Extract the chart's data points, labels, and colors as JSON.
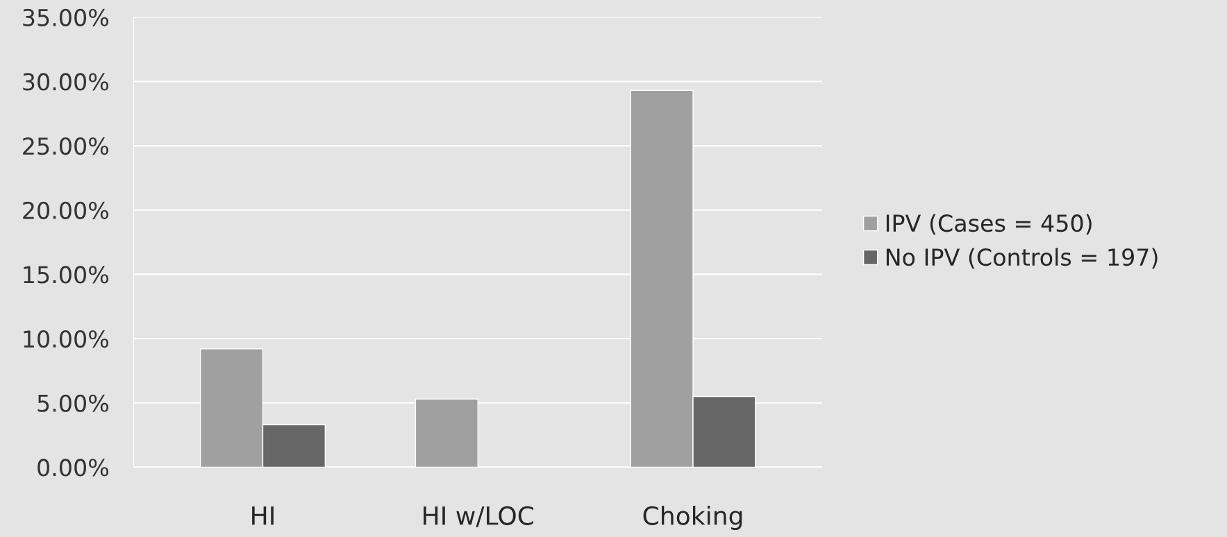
{
  "chart_data": {
    "type": "bar",
    "categories": [
      "HI",
      "HI w/LOC",
      "Choking"
    ],
    "series": [
      {
        "name": "IPV (Cases = 450)",
        "color": "#a0a0a0",
        "values": [
          9.2,
          5.3,
          29.3
        ]
      },
      {
        "name": "No IPV (Controls = 197)",
        "color": "#676767",
        "values": [
          3.3,
          null,
          5.5
        ]
      }
    ],
    "ylim": [
      0,
      35
    ],
    "yticks": [
      {
        "value": 0,
        "label": "0.00%"
      },
      {
        "value": 5,
        "label": "5.00%"
      },
      {
        "value": 10,
        "label": "10.00%"
      },
      {
        "value": 15,
        "label": "15.00%"
      },
      {
        "value": 20,
        "label": "20.00%"
      },
      {
        "value": 25,
        "label": "25.00%"
      },
      {
        "value": 30,
        "label": "30.00%"
      },
      {
        "value": 35,
        "label": "35.00%"
      }
    ],
    "grid": "y",
    "legend": "right"
  }
}
